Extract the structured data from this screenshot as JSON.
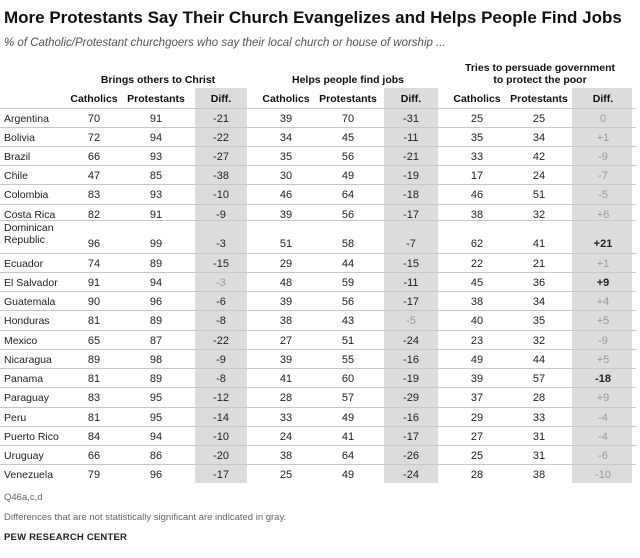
{
  "title": "More Protestants Say Their Church Evangelizes and Helps People Find Jobs",
  "subtitle": "% of Catholic/Protestant churchgoers who say their local church or house of worship ...",
  "footnote_q": "Q46a,c,d",
  "footnote_gray": "Differences that are not statistically significant are indicated in gray.",
  "source": "PEW RESEARCH CENTER",
  "colors": {
    "diff_background": "#dcdcdc",
    "not_significant": "#9a9a9a",
    "significant": "#222222"
  },
  "chart_data": {
    "type": "table",
    "groups": [
      {
        "label": "Brings others to Christ",
        "columns": [
          "Catholics",
          "Protestants",
          "Diff."
        ]
      },
      {
        "label": "Helps people find jobs",
        "columns": [
          "Catholics",
          "Protestants",
          "Diff."
        ]
      },
      {
        "label": "Tries to persuade government to protect the poor",
        "columns": [
          "Catholics",
          "Protestants",
          "Diff."
        ]
      }
    ],
    "rows": [
      {
        "country": "Argentina",
        "values": [
          [
            70,
            91,
            "-21",
            true
          ],
          [
            39,
            70,
            "-31",
            true
          ],
          [
            25,
            25,
            "0",
            false
          ]
        ]
      },
      {
        "country": "Bolivia",
        "values": [
          [
            72,
            94,
            "-22",
            true
          ],
          [
            34,
            45,
            "-11",
            true
          ],
          [
            35,
            34,
            "+1",
            false
          ]
        ]
      },
      {
        "country": "Brazil",
        "values": [
          [
            66,
            93,
            "-27",
            true
          ],
          [
            35,
            56,
            "-21",
            true
          ],
          [
            33,
            42,
            "-9",
            false
          ]
        ]
      },
      {
        "country": "Chile",
        "values": [
          [
            47,
            85,
            "-38",
            true
          ],
          [
            30,
            49,
            "-19",
            true
          ],
          [
            17,
            24,
            "-7",
            false
          ]
        ]
      },
      {
        "country": "Colombia",
        "values": [
          [
            83,
            93,
            "-10",
            true
          ],
          [
            46,
            64,
            "-18",
            true
          ],
          [
            46,
            51,
            "-5",
            false
          ]
        ]
      },
      {
        "country": "Costa Rica",
        "values": [
          [
            82,
            91,
            "-9",
            true
          ],
          [
            39,
            56,
            "-17",
            true
          ],
          [
            38,
            32,
            "+6",
            false
          ]
        ]
      },
      {
        "country": "Dominican\nRepublic",
        "values": [
          [
            96,
            99,
            "-3",
            true
          ],
          [
            51,
            58,
            "-7",
            true
          ],
          [
            62,
            41,
            "+21",
            true
          ]
        ]
      },
      {
        "country": "Ecuador",
        "values": [
          [
            74,
            89,
            "-15",
            true
          ],
          [
            29,
            44,
            "-15",
            true
          ],
          [
            22,
            21,
            "+1",
            false
          ]
        ]
      },
      {
        "country": "El Salvador",
        "values": [
          [
            91,
            94,
            "-3",
            false
          ],
          [
            48,
            59,
            "-11",
            true
          ],
          [
            45,
            36,
            "+9",
            true
          ]
        ]
      },
      {
        "country": "Guatemala",
        "values": [
          [
            90,
            96,
            "-6",
            true
          ],
          [
            39,
            56,
            "-17",
            true
          ],
          [
            38,
            34,
            "+4",
            false
          ]
        ]
      },
      {
        "country": "Honduras",
        "values": [
          [
            81,
            89,
            "-8",
            true
          ],
          [
            38,
            43,
            "-5",
            false
          ],
          [
            40,
            35,
            "+5",
            false
          ]
        ]
      },
      {
        "country": "Mexico",
        "values": [
          [
            65,
            87,
            "-22",
            true
          ],
          [
            27,
            51,
            "-24",
            true
          ],
          [
            23,
            32,
            "-9",
            false
          ]
        ]
      },
      {
        "country": "Nicaragua",
        "values": [
          [
            89,
            98,
            "-9",
            true
          ],
          [
            39,
            55,
            "-16",
            true
          ],
          [
            49,
            44,
            "+5",
            false
          ]
        ]
      },
      {
        "country": "Panama",
        "values": [
          [
            81,
            89,
            "-8",
            true
          ],
          [
            41,
            60,
            "-19",
            true
          ],
          [
            39,
            57,
            "-18",
            true
          ]
        ]
      },
      {
        "country": "Paraguay",
        "values": [
          [
            83,
            95,
            "-12",
            true
          ],
          [
            28,
            57,
            "-29",
            true
          ],
          [
            37,
            28,
            "+9",
            false
          ]
        ]
      },
      {
        "country": "Peru",
        "values": [
          [
            81,
            95,
            "-14",
            true
          ],
          [
            33,
            49,
            "-16",
            true
          ],
          [
            29,
            33,
            "-4",
            false
          ]
        ]
      },
      {
        "country": "Puerto Rico",
        "values": [
          [
            84,
            94,
            "-10",
            true
          ],
          [
            24,
            41,
            "-17",
            true
          ],
          [
            27,
            31,
            "-4",
            false
          ]
        ]
      },
      {
        "country": "Uruguay",
        "values": [
          [
            66,
            86,
            "-20",
            true
          ],
          [
            38,
            64,
            "-26",
            true
          ],
          [
            25,
            31,
            "-6",
            false
          ]
        ]
      },
      {
        "country": "Venezuela",
        "values": [
          [
            79,
            96,
            "-17",
            true
          ],
          [
            25,
            49,
            "-24",
            true
          ],
          [
            28,
            38,
            "-10",
            false
          ]
        ]
      }
    ]
  }
}
